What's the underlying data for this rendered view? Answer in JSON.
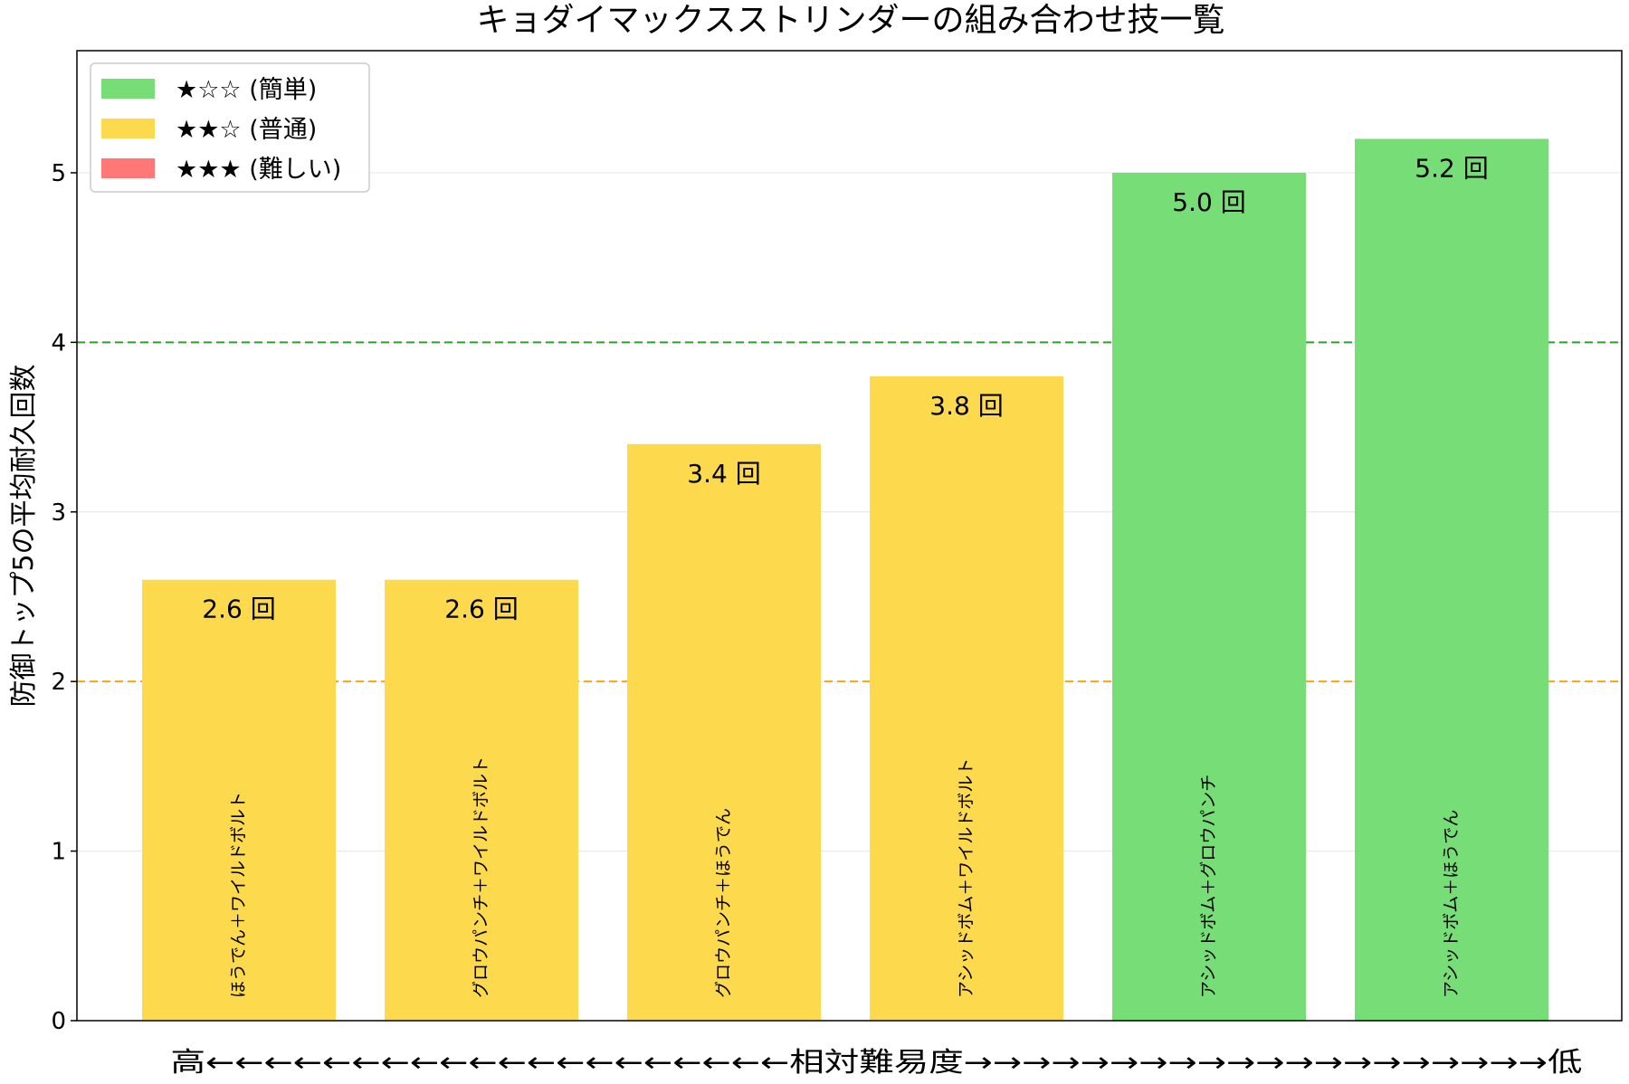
{
  "chart_data": {
    "type": "bar",
    "title": "キョダイマックスストリンダーの組み合わせ技一覧",
    "xlabel": "高←←←←←←←←←←←←←←←←←←←←相対難易度→→→→→→→→→→→→→→→→→→→→低",
    "ylabel": "防御トップ5の平均耐久回数",
    "ylim": [
      0,
      5.72
    ],
    "yticks": [
      "0",
      "1",
      "2",
      "3",
      "4",
      "5"
    ],
    "grid": true,
    "legend_position": "top-left",
    "categories": [
      "ほうでん＋ワイルドボルト",
      "グロウパンチ＋ワイルドボルト",
      "グロウパンチ＋ほうでん",
      "アシッドボム＋ワイルドボルト",
      "アシッドボム＋グロウパンチ",
      "アシッドボム＋ほうでん"
    ],
    "values": [
      2.6,
      2.6,
      3.4,
      3.8,
      5.0,
      5.2
    ],
    "value_labels": [
      "2.6 回",
      "2.6 回",
      "3.4 回",
      "3.8 回",
      "5.0 回",
      "5.2 回"
    ],
    "difficulty": [
      "medium",
      "medium",
      "medium",
      "medium",
      "easy",
      "easy"
    ],
    "reference_lines": [
      {
        "y": 4,
        "color": "#2ca02c"
      },
      {
        "y": 2,
        "color": "#ffa500"
      }
    ],
    "legend": [
      {
        "key": "easy",
        "label": "★☆☆ (簡単)",
        "color": "#77dd77"
      },
      {
        "key": "medium",
        "label": "★★☆ (普通)",
        "color": "#fdda4d"
      },
      {
        "key": "hard",
        "label": "★★★ (難しい)",
        "color": "#ff7777"
      }
    ]
  }
}
